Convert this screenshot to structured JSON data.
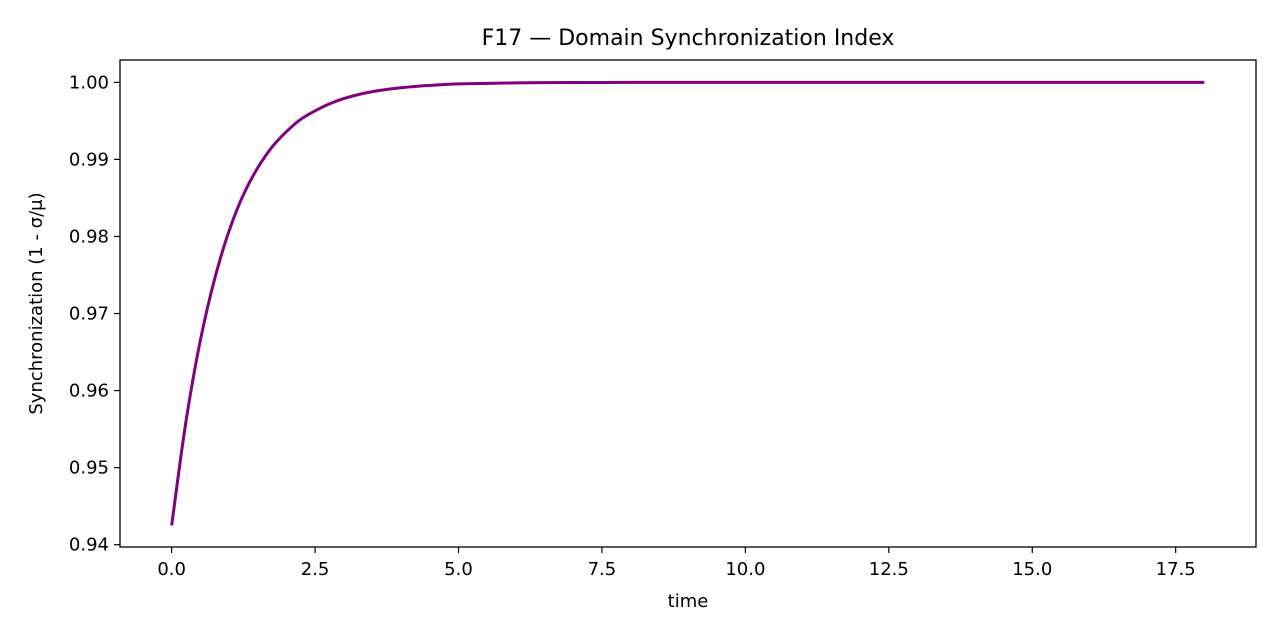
{
  "chart_data": {
    "type": "line",
    "title": "F17 — Domain Synchronization Index",
    "xlabel": "time",
    "ylabel": "Synchronization (1 - σ/μ)",
    "xlim": [
      -0.9,
      18.9
    ],
    "ylim": [
      0.9397,
      1.0029
    ],
    "x_ticks": [
      0.0,
      2.5,
      5.0,
      7.5,
      10.0,
      12.5,
      15.0,
      17.5
    ],
    "x_tick_labels": [
      "0.0",
      "2.5",
      "5.0",
      "7.5",
      "10.0",
      "12.5",
      "15.0",
      "17.5"
    ],
    "y_ticks": [
      0.94,
      0.95,
      0.96,
      0.97,
      0.98,
      0.99,
      1.0
    ],
    "y_tick_labels": [
      "0.94",
      "0.95",
      "0.96",
      "0.97",
      "0.98",
      "0.99",
      "1.00"
    ],
    "grid": false,
    "legend": "none",
    "series": [
      {
        "color": "#800080",
        "x": [
          0.0,
          0.25,
          0.5,
          0.75,
          1.0,
          1.25,
          1.5,
          1.75,
          2.0,
          2.25,
          2.5,
          2.75,
          3.0,
          3.5,
          4.0,
          4.5,
          5.0,
          5.5,
          6.0,
          7.0,
          8.0,
          9.0,
          10.0,
          12.0,
          14.0,
          16.0,
          18.0
        ],
        "y": [
          0.9425,
          0.956,
          0.9665,
          0.9745,
          0.9807,
          0.9854,
          0.9889,
          0.9916,
          0.9936,
          0.9952,
          0.9963,
          0.9972,
          0.9979,
          0.9988,
          0.9993,
          0.9996,
          0.9998,
          0.99987,
          0.99993,
          0.99998,
          0.99999,
          1.0,
          1.0,
          1.0,
          1.0,
          1.0,
          1.0
        ]
      }
    ]
  }
}
